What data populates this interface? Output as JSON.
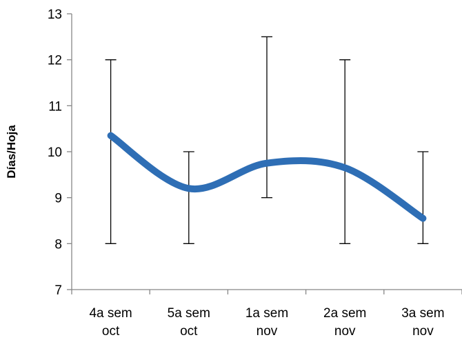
{
  "chart_data": {
    "type": "line",
    "title": "",
    "xlabel": "",
    "ylabel": "Días/Hoja",
    "ylim": [
      7,
      13
    ],
    "yticks": [
      7,
      8,
      9,
      10,
      11,
      12,
      13
    ],
    "categories": [
      [
        "4a sem",
        "oct"
      ],
      [
        "5a sem",
        "oct"
      ],
      [
        "1a sem",
        "nov"
      ],
      [
        "2a sem",
        "nov"
      ],
      [
        "3a sem",
        "nov"
      ]
    ],
    "series": [
      {
        "values": [
          10.35,
          9.2,
          9.75,
          9.65,
          8.55
        ],
        "error_low": [
          8,
          8,
          9,
          8,
          8
        ],
        "error_high": [
          12,
          10,
          12.5,
          12,
          10
        ],
        "smooth": true,
        "color": "#2e6eb5"
      }
    ],
    "grid": false,
    "legend": "none"
  }
}
